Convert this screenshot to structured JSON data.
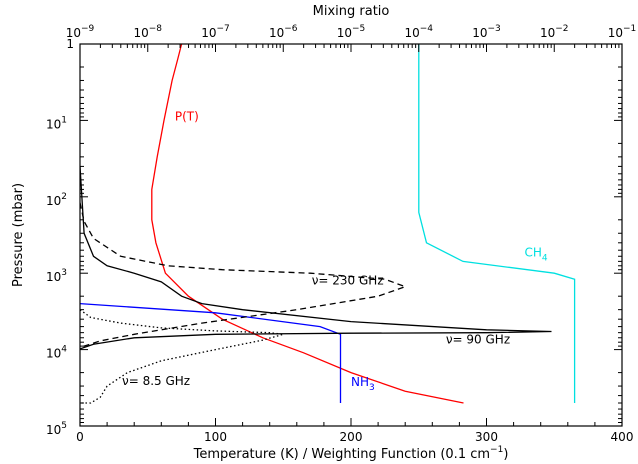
{
  "chart_data": {
    "type": "line",
    "title": "",
    "xlabel": "Temperature (K) / Weighting Function (0.1 cm",
    "xlabel_sup": "−1",
    "xlabel_close": ")",
    "ylabel": "Pressure (mbar)",
    "top_xlabel": "Mixing ratio",
    "xlim": [
      0,
      400
    ],
    "ylim_mbar": [
      100000,
      1
    ],
    "y_scale": "log",
    "top_x_scale": "log",
    "top_xlim": [
      1e-09,
      0.1
    ],
    "x_ticks": [
      0,
      100,
      200,
      300,
      400
    ],
    "x_tick_labels": [
      "0",
      "100",
      "200",
      "300",
      "400"
    ],
    "y_ticks": [
      1,
      10,
      100,
      1000,
      10000,
      100000
    ],
    "y_tick_labels": [
      {
        "base": "1",
        "exp": ""
      },
      {
        "base": "10",
        "exp": "1"
      },
      {
        "base": "10",
        "exp": "2"
      },
      {
        "base": "10",
        "exp": "3"
      },
      {
        "base": "10",
        "exp": "4"
      },
      {
        "base": "10",
        "exp": "5"
      }
    ],
    "top_ticks": [
      1e-09,
      1e-08,
      1e-07,
      1e-06,
      1e-05,
      0.0001,
      0.001,
      0.01,
      0.1
    ],
    "top_tick_labels": [
      {
        "base": "10",
        "exp": "−9"
      },
      {
        "base": "10",
        "exp": "−8"
      },
      {
        "base": "10",
        "exp": "−7"
      },
      {
        "base": "10",
        "exp": "−6"
      },
      {
        "base": "10",
        "exp": "−5"
      },
      {
        "base": "10",
        "exp": "−4"
      },
      {
        "base": "10",
        "exp": "−3"
      },
      {
        "base": "10",
        "exp": "−2"
      },
      {
        "base": "10",
        "exp": "−1"
      }
    ],
    "grid": false,
    "series": [
      {
        "name": "P(T)",
        "color": "#ff0000",
        "style": "solid",
        "axis": "bottom",
        "points": [
          [
            75,
            1
          ],
          [
            72,
            1.6
          ],
          [
            68,
            3
          ],
          [
            62,
            10
          ],
          [
            57,
            30
          ],
          [
            53,
            80
          ],
          [
            53,
            200
          ],
          [
            56,
            400
          ],
          [
            63,
            1000
          ],
          [
            80,
            2000
          ],
          [
            105,
            4000
          ],
          [
            135,
            7000
          ],
          [
            165,
            11000
          ],
          [
            200,
            20000
          ],
          [
            240,
            35000
          ],
          [
            283,
            50000
          ]
        ]
      },
      {
        "name": "CH4",
        "color": "#00e0e0",
        "style": "solid",
        "axis": "top",
        "points": [
          [
            0.0001,
            1
          ],
          [
            0.0001,
            160
          ],
          [
            0.00013,
            400
          ],
          [
            0.00045,
            700
          ],
          [
            0.01,
            1000
          ],
          [
            0.02,
            1200
          ],
          [
            0.02,
            50000
          ]
        ]
      },
      {
        "name": "NH3",
        "color": "#0000ff",
        "style": "solid",
        "axis": "top",
        "points": [
          [
            1e-09,
            2500
          ],
          [
            1e-07,
            3300
          ],
          [
            3.5e-06,
            5000
          ],
          [
            7e-06,
            6300
          ],
          [
            7e-06,
            50000
          ]
        ]
      },
      {
        "name": "ν= 230 GHz",
        "color": "#000000",
        "style": "dashed",
        "axis": "bottom",
        "points": [
          [
            0,
            120
          ],
          [
            3,
            210
          ],
          [
            10,
            350
          ],
          [
            30,
            600
          ],
          [
            65,
            800
          ],
          [
            105,
            900
          ],
          [
            170,
            1000
          ],
          [
            225,
            1200
          ],
          [
            240,
            1500
          ],
          [
            220,
            2000
          ],
          [
            160,
            3000
          ],
          [
            90,
            4500
          ],
          [
            40,
            6300
          ],
          [
            15,
            7700
          ],
          [
            3,
            9000
          ],
          [
            0,
            9500
          ]
        ]
      },
      {
        "name": "ν= 90 GHz",
        "color": "#000000",
        "style": "solid",
        "axis": "bottom",
        "points": [
          [
            0,
            40
          ],
          [
            3,
            300
          ],
          [
            10,
            600
          ],
          [
            20,
            800
          ],
          [
            40,
            1000
          ],
          [
            60,
            1300
          ],
          [
            75,
            2000
          ],
          [
            90,
            2500
          ],
          [
            120,
            3000
          ],
          [
            200,
            4300
          ],
          [
            300,
            5500
          ],
          [
            348,
            5800
          ],
          [
            300,
            6000
          ],
          [
            200,
            6100
          ],
          [
            100,
            6300
          ],
          [
            40,
            7000
          ],
          [
            10,
            8500
          ],
          [
            0,
            9800
          ]
        ]
      },
      {
        "name": "ν= 8.5 GHz",
        "color": "#000000",
        "style": "dotted",
        "axis": "bottom",
        "points": [
          [
            0,
            3000
          ],
          [
            8,
            3800
          ],
          [
            30,
            4500
          ],
          [
            60,
            5200
          ],
          [
            100,
            5700
          ],
          [
            140,
            6000
          ],
          [
            150,
            6300
          ],
          [
            135,
            7500
          ],
          [
            100,
            10000
          ],
          [
            60,
            14000
          ],
          [
            35,
            20000
          ],
          [
            20,
            30000
          ],
          [
            15,
            42000
          ],
          [
            8,
            50000
          ],
          [
            0,
            50000
          ]
        ]
      }
    ],
    "annotations": [
      {
        "text": "P(T)",
        "sub": "",
        "color": "#ff0000",
        "x": 70,
        "y_mbar": 10
      },
      {
        "text": "CH",
        "sub": "4",
        "color": "#00e0e0",
        "x": 328,
        "y_mbar": 600
      },
      {
        "text": "NH",
        "sub": "3",
        "color": "#0000ff",
        "x": 200,
        "y_mbar": 30000
      },
      {
        "text": "ν= 230 GHz",
        "sub": "",
        "color": "#000000",
        "x": 171,
        "y_mbar": 1400
      },
      {
        "text": "ν=  90 GHz",
        "sub": "",
        "color": "#000000",
        "x": 270,
        "y_mbar": 8300
      },
      {
        "text": "ν=  8.5 GHz",
        "sub": "",
        "color": "#000000",
        "x": 31,
        "y_mbar": 29000
      }
    ]
  }
}
